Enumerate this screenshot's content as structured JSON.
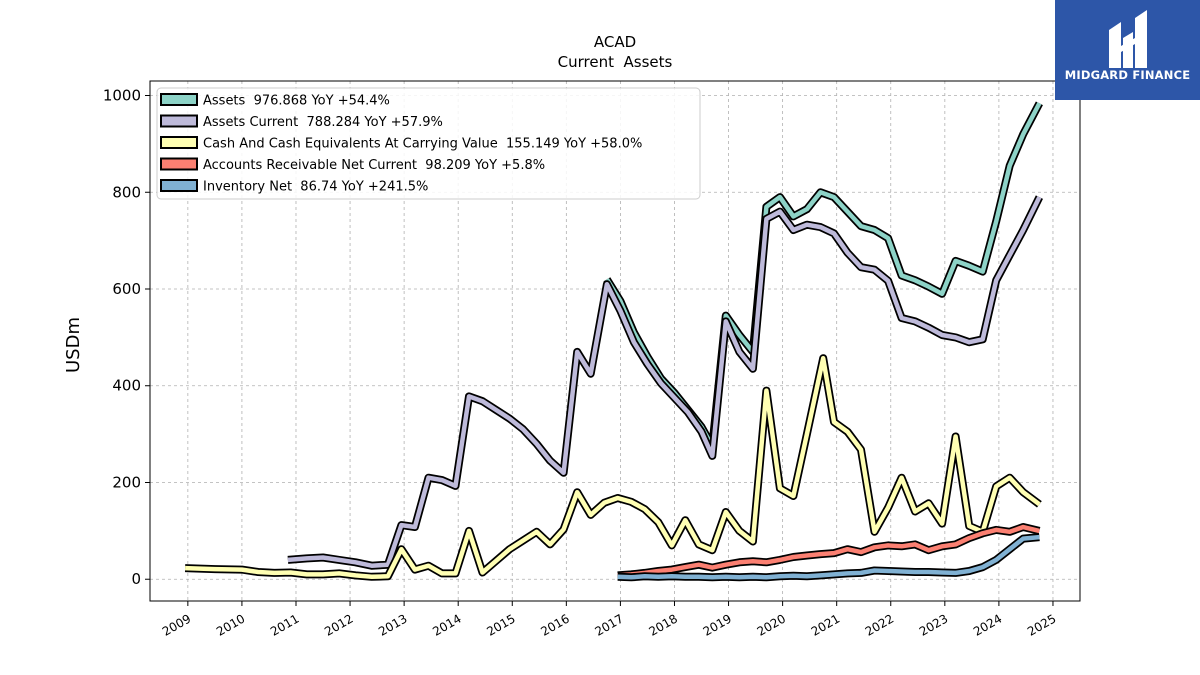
{
  "chart_data": {
    "type": "line",
    "title": "ACAD",
    "subtitle": "Current  Assets",
    "xlabel": "",
    "ylabel": "USDm",
    "xlim": [
      2008.3,
      2025.5
    ],
    "ylim": [
      -45,
      1030
    ],
    "grid": true,
    "legend_position": "top-left",
    "x_ticks": [
      2009,
      2010,
      2011,
      2012,
      2013,
      2014,
      2015,
      2016,
      2017,
      2018,
      2019,
      2020,
      2021,
      2022,
      2023,
      2024,
      2025
    ],
    "y_ticks": [
      0,
      200,
      400,
      600,
      800,
      1000
    ],
    "series": [
      {
        "name": "Assets",
        "legend": "Assets  976.868 YoY +54.4%",
        "color": "#8dd3c7",
        "points": [
          [
            2016.75,
            620
          ],
          [
            2017.0,
            575
          ],
          [
            2017.25,
            510
          ],
          [
            2017.5,
            460
          ],
          [
            2017.75,
            415
          ],
          [
            2018.0,
            385
          ],
          [
            2018.25,
            350
          ],
          [
            2018.5,
            315
          ],
          [
            2018.7,
            275
          ],
          [
            2018.95,
            545
          ],
          [
            2019.2,
            505
          ],
          [
            2019.45,
            470
          ],
          [
            2019.7,
            770
          ],
          [
            2019.95,
            790
          ],
          [
            2020.2,
            750
          ],
          [
            2020.45,
            765
          ],
          [
            2020.7,
            800
          ],
          [
            2020.95,
            790
          ],
          [
            2021.2,
            760
          ],
          [
            2021.45,
            730
          ],
          [
            2021.7,
            722
          ],
          [
            2021.95,
            705
          ],
          [
            2022.2,
            628
          ],
          [
            2022.45,
            618
          ],
          [
            2022.7,
            605
          ],
          [
            2022.95,
            590
          ],
          [
            2023.2,
            658
          ],
          [
            2023.45,
            648
          ],
          [
            2023.7,
            636
          ],
          [
            2023.95,
            740
          ],
          [
            2024.2,
            855
          ],
          [
            2024.45,
            920
          ],
          [
            2024.75,
            984
          ]
        ]
      },
      {
        "name": "Assets Current",
        "legend": "Assets Current  788.284 YoY +57.9%",
        "color": "#bebada",
        "points": [
          [
            2010.85,
            40
          ],
          [
            2011.2,
            43
          ],
          [
            2011.5,
            45
          ],
          [
            2011.8,
            40
          ],
          [
            2012.1,
            35
          ],
          [
            2012.4,
            28
          ],
          [
            2012.7,
            30
          ],
          [
            2012.95,
            112
          ],
          [
            2013.2,
            108
          ],
          [
            2013.45,
            210
          ],
          [
            2013.7,
            205
          ],
          [
            2013.95,
            193
          ],
          [
            2014.2,
            378
          ],
          [
            2014.45,
            368
          ],
          [
            2014.7,
            350
          ],
          [
            2014.95,
            332
          ],
          [
            2015.2,
            310
          ],
          [
            2015.45,
            280
          ],
          [
            2015.7,
            245
          ],
          [
            2015.95,
            220
          ],
          [
            2016.2,
            470
          ],
          [
            2016.45,
            425
          ],
          [
            2016.75,
            610
          ],
          [
            2017.0,
            555
          ],
          [
            2017.25,
            490
          ],
          [
            2017.5,
            445
          ],
          [
            2017.75,
            405
          ],
          [
            2018.0,
            375
          ],
          [
            2018.25,
            345
          ],
          [
            2018.5,
            305
          ],
          [
            2018.7,
            255
          ],
          [
            2018.95,
            533
          ],
          [
            2019.2,
            470
          ],
          [
            2019.45,
            435
          ],
          [
            2019.7,
            745
          ],
          [
            2019.95,
            760
          ],
          [
            2020.2,
            722
          ],
          [
            2020.45,
            733
          ],
          [
            2020.7,
            728
          ],
          [
            2020.95,
            715
          ],
          [
            2021.2,
            675
          ],
          [
            2021.45,
            645
          ],
          [
            2021.7,
            640
          ],
          [
            2021.95,
            617
          ],
          [
            2022.2,
            540
          ],
          [
            2022.45,
            533
          ],
          [
            2022.7,
            520
          ],
          [
            2022.95,
            505
          ],
          [
            2023.2,
            500
          ],
          [
            2023.45,
            490
          ],
          [
            2023.7,
            496
          ],
          [
            2023.95,
            618
          ],
          [
            2024.2,
            670
          ],
          [
            2024.45,
            722
          ],
          [
            2024.75,
            790
          ]
        ]
      },
      {
        "name": "Cash And Cash Equivalents At Carrying Value",
        "legend": "Cash And Cash Equivalents At Carrying Value  155.149 YoY +58.0%",
        "color": "#ffffb3",
        "points": [
          [
            2008.95,
            23
          ],
          [
            2009.5,
            21
          ],
          [
            2010.0,
            20
          ],
          [
            2010.3,
            15
          ],
          [
            2010.6,
            13
          ],
          [
            2010.9,
            14
          ],
          [
            2011.2,
            10
          ],
          [
            2011.5,
            10
          ],
          [
            2011.8,
            12
          ],
          [
            2012.1,
            8
          ],
          [
            2012.4,
            5
          ],
          [
            2012.7,
            6
          ],
          [
            2012.95,
            62
          ],
          [
            2013.2,
            20
          ],
          [
            2013.45,
            28
          ],
          [
            2013.7,
            12
          ],
          [
            2013.95,
            12
          ],
          [
            2014.2,
            100
          ],
          [
            2014.45,
            14
          ],
          [
            2014.7,
            38
          ],
          [
            2014.95,
            62
          ],
          [
            2015.2,
            80
          ],
          [
            2015.45,
            98
          ],
          [
            2015.7,
            72
          ],
          [
            2015.95,
            103
          ],
          [
            2016.2,
            180
          ],
          [
            2016.45,
            133
          ],
          [
            2016.7,
            158
          ],
          [
            2016.95,
            168
          ],
          [
            2017.2,
            160
          ],
          [
            2017.45,
            145
          ],
          [
            2017.7,
            118
          ],
          [
            2017.95,
            70
          ],
          [
            2018.2,
            122
          ],
          [
            2018.45,
            72
          ],
          [
            2018.7,
            60
          ],
          [
            2018.95,
            139
          ],
          [
            2019.2,
            100
          ],
          [
            2019.45,
            78
          ],
          [
            2019.7,
            390
          ],
          [
            2019.95,
            188
          ],
          [
            2020.2,
            172
          ],
          [
            2020.45,
            300
          ],
          [
            2020.75,
            457
          ],
          [
            2020.95,
            325
          ],
          [
            2021.2,
            305
          ],
          [
            2021.45,
            268
          ],
          [
            2021.7,
            98
          ],
          [
            2021.95,
            148
          ],
          [
            2022.2,
            210
          ],
          [
            2022.45,
            140
          ],
          [
            2022.7,
            157
          ],
          [
            2022.95,
            115
          ],
          [
            2023.2,
            295
          ],
          [
            2023.45,
            110
          ],
          [
            2023.7,
            98
          ],
          [
            2023.95,
            192
          ],
          [
            2024.2,
            210
          ],
          [
            2024.45,
            180
          ],
          [
            2024.75,
            155
          ]
        ]
      },
      {
        "name": "Accounts Receivable Net Current",
        "legend": "Accounts Receivable Net Current  98.209 YoY +5.8%",
        "color": "#fb8072",
        "points": [
          [
            2016.95,
            8
          ],
          [
            2017.2,
            10
          ],
          [
            2017.45,
            13
          ],
          [
            2017.7,
            17
          ],
          [
            2017.95,
            20
          ],
          [
            2018.2,
            25
          ],
          [
            2018.45,
            30
          ],
          [
            2018.7,
            24
          ],
          [
            2018.95,
            30
          ],
          [
            2019.2,
            35
          ],
          [
            2019.45,
            37
          ],
          [
            2019.7,
            35
          ],
          [
            2019.95,
            40
          ],
          [
            2020.2,
            46
          ],
          [
            2020.45,
            49
          ],
          [
            2020.7,
            52
          ],
          [
            2020.95,
            54
          ],
          [
            2021.2,
            62
          ],
          [
            2021.45,
            56
          ],
          [
            2021.7,
            66
          ],
          [
            2021.95,
            70
          ],
          [
            2022.2,
            68
          ],
          [
            2022.45,
            72
          ],
          [
            2022.7,
            60
          ],
          [
            2022.95,
            68
          ],
          [
            2023.2,
            72
          ],
          [
            2023.45,
            85
          ],
          [
            2023.7,
            95
          ],
          [
            2023.95,
            102
          ],
          [
            2024.2,
            98
          ],
          [
            2024.45,
            108
          ],
          [
            2024.75,
            100
          ]
        ]
      },
      {
        "name": "Inventory Net",
        "legend": "Inventory Net  86.74 YoY +241.5%",
        "color": "#80b1d3",
        "points": [
          [
            2016.95,
            5
          ],
          [
            2017.2,
            4
          ],
          [
            2017.45,
            6
          ],
          [
            2017.7,
            5
          ],
          [
            2017.95,
            6
          ],
          [
            2018.2,
            5
          ],
          [
            2018.45,
            5
          ],
          [
            2018.7,
            4
          ],
          [
            2018.95,
            5
          ],
          [
            2019.2,
            4
          ],
          [
            2019.45,
            5
          ],
          [
            2019.7,
            4
          ],
          [
            2019.95,
            6
          ],
          [
            2020.2,
            7
          ],
          [
            2020.45,
            6
          ],
          [
            2020.7,
            8
          ],
          [
            2020.95,
            10
          ],
          [
            2021.2,
            12
          ],
          [
            2021.45,
            13
          ],
          [
            2021.7,
            18
          ],
          [
            2021.95,
            17
          ],
          [
            2022.2,
            16
          ],
          [
            2022.45,
            15
          ],
          [
            2022.7,
            15
          ],
          [
            2022.95,
            14
          ],
          [
            2023.2,
            13
          ],
          [
            2023.45,
            17
          ],
          [
            2023.7,
            25
          ],
          [
            2023.95,
            40
          ],
          [
            2024.2,
            62
          ],
          [
            2024.45,
            84
          ],
          [
            2024.75,
            87
          ]
        ]
      }
    ]
  },
  "logo": {
    "text": "MIDGARD FINANCE",
    "background": "#2d56a8"
  }
}
